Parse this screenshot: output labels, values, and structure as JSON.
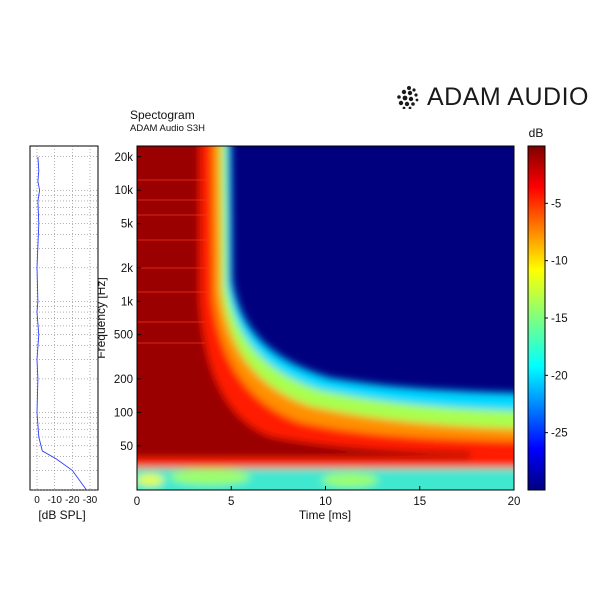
{
  "brand": {
    "name": "ADAM AUDIO",
    "logo_icon": "dot-cluster-icon"
  },
  "chart_data": [
    {
      "type": "heatmap",
      "title": "Spectogram",
      "subtitle": "ADAM Audio S3H",
      "xlabel": "Time [ms]",
      "ylabel": "Frequency [Hz]",
      "x_ticks": [
        0,
        5,
        10,
        15,
        20
      ],
      "x_tick_labels": [
        "0",
        "5",
        "10",
        "15",
        "20"
      ],
      "xlim": [
        0,
        20
      ],
      "y_scale": "log",
      "ylim": [
        20,
        25000
      ],
      "y_ticks": [
        50,
        100,
        200,
        500,
        1000,
        2000,
        5000,
        10000,
        20000
      ],
      "y_tick_labels": [
        "50",
        "100",
        "200",
        "500",
        "1k",
        "2k",
        "5k",
        "10k",
        "20k"
      ],
      "colorbar": {
        "label": "dB",
        "range": [
          -30,
          0
        ],
        "ticks": [
          -5,
          -10,
          -15,
          -20,
          -25
        ],
        "tick_labels": [
          "-5",
          "-10",
          "-15",
          "-20",
          "-25"
        ],
        "colormap": "jet"
      },
      "decay_time_ms": [
        {
          "freq": 20000,
          "t": 4.5
        },
        {
          "freq": 5000,
          "t": 4.6
        },
        {
          "freq": 2000,
          "t": 4.7
        },
        {
          "freq": 1000,
          "t": 5.0
        },
        {
          "freq": 500,
          "t": 6.0
        },
        {
          "freq": 200,
          "t": 9.0
        },
        {
          "freq": 100,
          "t": 14.0
        },
        {
          "freq": 60,
          "t": 20.0
        }
      ],
      "grid": false
    },
    {
      "type": "line",
      "xlabel": "[dB SPL]",
      "x_ticks": [
        0,
        -10,
        -20,
        -30
      ],
      "x_tick_labels": [
        "0",
        "-10",
        "-20",
        "-30"
      ],
      "y_scale": "log",
      "ylim": [
        20,
        25000
      ],
      "series": [
        {
          "freq": [
            20,
            30,
            38,
            45,
            60,
            100,
            200,
            300,
            500,
            800,
            1000,
            2000,
            5000,
            8000,
            10000,
            12000,
            15000,
            20000
          ],
          "db": [
            -28,
            -20,
            -11,
            -3,
            -1,
            0,
            -0.5,
            0,
            -1,
            0,
            -0.5,
            0,
            -1,
            -0.5,
            -1.5,
            -0.5,
            -1,
            -0.5
          ]
        }
      ],
      "grid": true
    }
  ]
}
